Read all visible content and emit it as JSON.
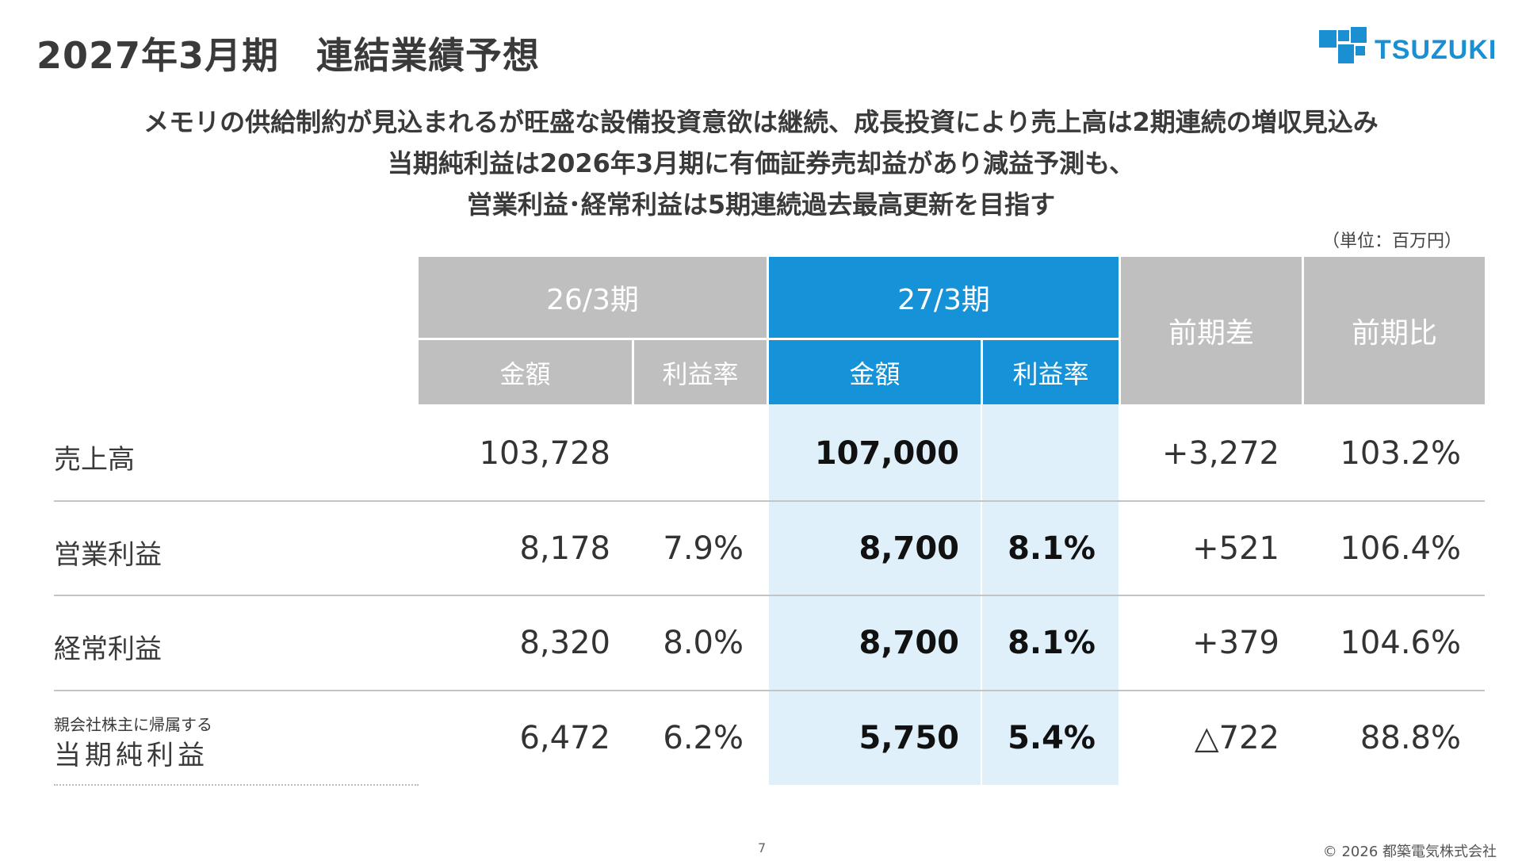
{
  "title": "2027年3月期　連結業績予想",
  "logo": {
    "text": "TSUZUKI",
    "color": "#1a8fd1",
    "icon": "tsuzuki-logo-squares"
  },
  "subtitle": [
    "メモリの供給制約が見込まれるが旺盛な設備投資意欲は継続、成長投資により売上高は2期連続の増収見込み",
    "当期純利益は2026年3月期に有価証券売却益があり減益予測も、",
    "営業利益･経常利益は5期連続過去最高更新を目指す"
  ],
  "unit": "（単位：百万円）",
  "table": {
    "headers": {
      "prev_period": "26/3期",
      "curr_period": "27/3期",
      "diff": "前期差",
      "ratio": "前期比",
      "amount": "金額",
      "margin": "利益率"
    },
    "rows": [
      {
        "label": "売上高",
        "prev_amount": "103,728",
        "prev_margin": "",
        "curr_amount": "107,000",
        "curr_margin": "",
        "diff": "+3,272",
        "ratio": "103.2%"
      },
      {
        "label": "営業利益",
        "prev_amount": "8,178",
        "prev_margin": "7.9%",
        "curr_amount": "8,700",
        "curr_margin": "8.1%",
        "diff": "+521",
        "ratio": "106.4%"
      },
      {
        "label": "経常利益",
        "prev_amount": "8,320",
        "prev_margin": "8.0%",
        "curr_amount": "8,700",
        "curr_margin": "8.1%",
        "diff": "+379",
        "ratio": "104.6%"
      },
      {
        "label_small": "親会社株主に帰属する",
        "label": "当期純利益",
        "prev_amount": "6,472",
        "prev_margin": "6.2%",
        "curr_amount": "5,750",
        "curr_margin": "5.4%",
        "diff": "△722",
        "ratio": "88.8%"
      }
    ]
  },
  "colors": {
    "accent": "#1592d8",
    "header_gray": "#bfbfbf",
    "highlight": "#dff0fa"
  },
  "footer": {
    "page": "7",
    "copyright": "© 2026 都築電気株式会社"
  }
}
